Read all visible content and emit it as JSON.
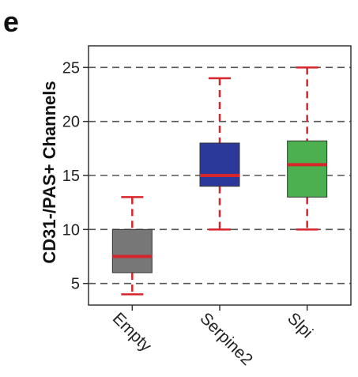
{
  "panel_label": "e",
  "chart_data": {
    "type": "box",
    "title": "",
    "xlabel": "",
    "ylabel": "CD31-/PAS+ Channels",
    "ylim": [
      3,
      27
    ],
    "yticks": [
      5,
      10,
      15,
      20,
      25
    ],
    "grid": "horizontal dashed",
    "categories": [
      "Empty",
      "Serpine2",
      "Slpi"
    ],
    "boxes": [
      {
        "category": "Empty",
        "whisker_low": 4,
        "q1": 6,
        "median": 7.5,
        "q3": 10,
        "whisker_high": 13,
        "color": "#777777"
      },
      {
        "category": "Serpine2",
        "whisker_low": 10,
        "q1": 14,
        "median": 15,
        "q3": 18,
        "whisker_high": 24,
        "color": "#2b3a9a"
      },
      {
        "category": "Slpi",
        "whisker_low": 10,
        "q1": 13,
        "median": 16,
        "q3": 18.2,
        "whisker_high": 25,
        "color": "#4caf50"
      }
    ],
    "colors": {
      "median": "#d7262b",
      "whisker": "#d7262b",
      "grid": "#555555",
      "axis": "#333333"
    }
  }
}
